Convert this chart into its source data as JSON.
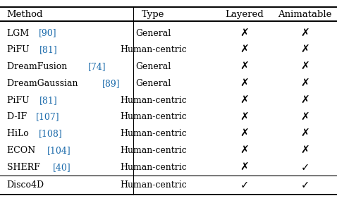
{
  "headers": [
    "Method",
    "Type",
    "Layered",
    "Animatable"
  ],
  "rows": [
    {
      "base": "LGM ",
      "ref": "[90]",
      "type": "General",
      "layered": false,
      "animatable": false
    },
    {
      "base": "PiFU ",
      "ref": "[81]",
      "type": "Human-centric",
      "layered": false,
      "animatable": false
    },
    {
      "base": "DreamFusion ",
      "ref": "[74]",
      "type": "General",
      "layered": false,
      "animatable": false
    },
    {
      "base": "DreamGaussian ",
      "ref": "[89]",
      "type": "General",
      "layered": false,
      "animatable": false
    },
    {
      "base": "PiFU ",
      "ref": "[81]",
      "type": "Human-centric",
      "layered": false,
      "animatable": false
    },
    {
      "base": "D-IF ",
      "ref": "[107]",
      "type": "Human-centric",
      "layered": false,
      "animatable": false
    },
    {
      "base": "HiLo ",
      "ref": "[108]",
      "type": "Human-centric",
      "layered": false,
      "animatable": false
    },
    {
      "base": "ECON ",
      "ref": "[104]",
      "type": "Human-centric",
      "layered": false,
      "animatable": false
    },
    {
      "base": "SHERF ",
      "ref": "[40]",
      "type": "Human-centric",
      "layered": false,
      "animatable": true
    },
    {
      "base": "Disco4D",
      "ref": "",
      "type": "Human-centric",
      "layered": true,
      "animatable": true
    }
  ],
  "ref_color": "#1a6aab",
  "background_color": "#ffffff",
  "figsize": [
    4.78,
    2.88
  ],
  "dpi": 100
}
